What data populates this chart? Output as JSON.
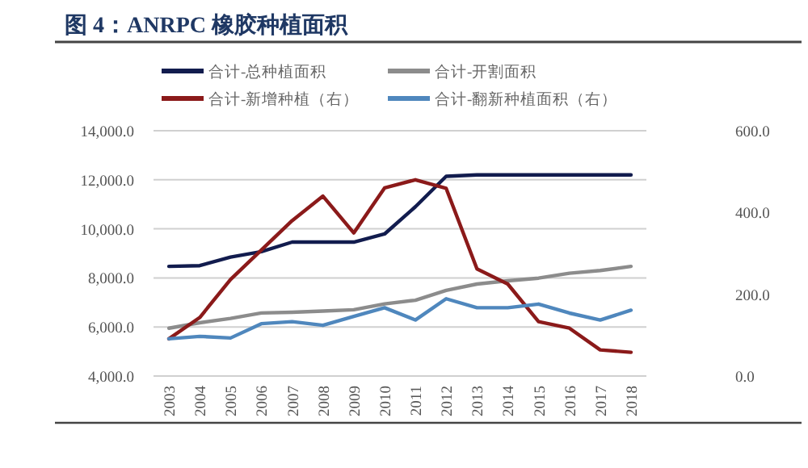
{
  "chart_data": {
    "type": "line",
    "title": "图 4：ANRPC 橡胶种植面积",
    "categories": [
      "2003",
      "2004",
      "2005",
      "2006",
      "2007",
      "2008",
      "2009",
      "2010",
      "2011",
      "2012",
      "2013",
      "2014",
      "2015",
      "2016",
      "2017",
      "2018"
    ],
    "series": [
      {
        "name": "合计-总种植面积",
        "color": "#121c4e",
        "values": [
          8470,
          8500,
          8850,
          9070,
          9460,
          9460,
          9460,
          9790,
          10900,
          12140,
          12200,
          12200,
          12200,
          12200,
          12200,
          12200
        ]
      },
      {
        "name": "合计-开割面积",
        "color": "#8c8c8c",
        "values": [
          5950,
          6170,
          6350,
          6570,
          6600,
          6650,
          6700,
          6940,
          7090,
          7490,
          7750,
          7880,
          7990,
          8190,
          8300,
          8470
        ]
      },
      {
        "name": "合计-新增种植（右）",
        "color": "#8b1a1a",
        "axis": "y2",
        "values": [
          91,
          143,
          236,
          308,
          380,
          440,
          350,
          460,
          480,
          459,
          262,
          225,
          133,
          117,
          64,
          58
        ]
      },
      {
        "name": "合计-翻新种植面积（右）",
        "color": "#4f87bd",
        "axis": "y2",
        "values": [
          91,
          97,
          93,
          128,
          133,
          124,
          146,
          167,
          137,
          189,
          167,
          167,
          176,
          154,
          137,
          161
        ]
      }
    ],
    "ylim": [
      4000,
      14000
    ],
    "yticks": [
      {
        "value": 4000,
        "label": "4,000.0"
      },
      {
        "value": 6000,
        "label": "6,000.0"
      },
      {
        "value": 8000,
        "label": "8,000.0"
      },
      {
        "value": 10000,
        "label": "10,000.0"
      },
      {
        "value": 12000,
        "label": "12,000.0"
      },
      {
        "value": 14000,
        "label": "14,000.0"
      }
    ],
    "y2lim": [
      0,
      600
    ],
    "y2ticks": [
      {
        "value": 0,
        "label": "0.0"
      },
      {
        "value": 200,
        "label": "200.0"
      },
      {
        "value": 400,
        "label": "400.0"
      },
      {
        "value": 600,
        "label": "600.0"
      }
    ],
    "grid": "y",
    "legend": "top"
  }
}
